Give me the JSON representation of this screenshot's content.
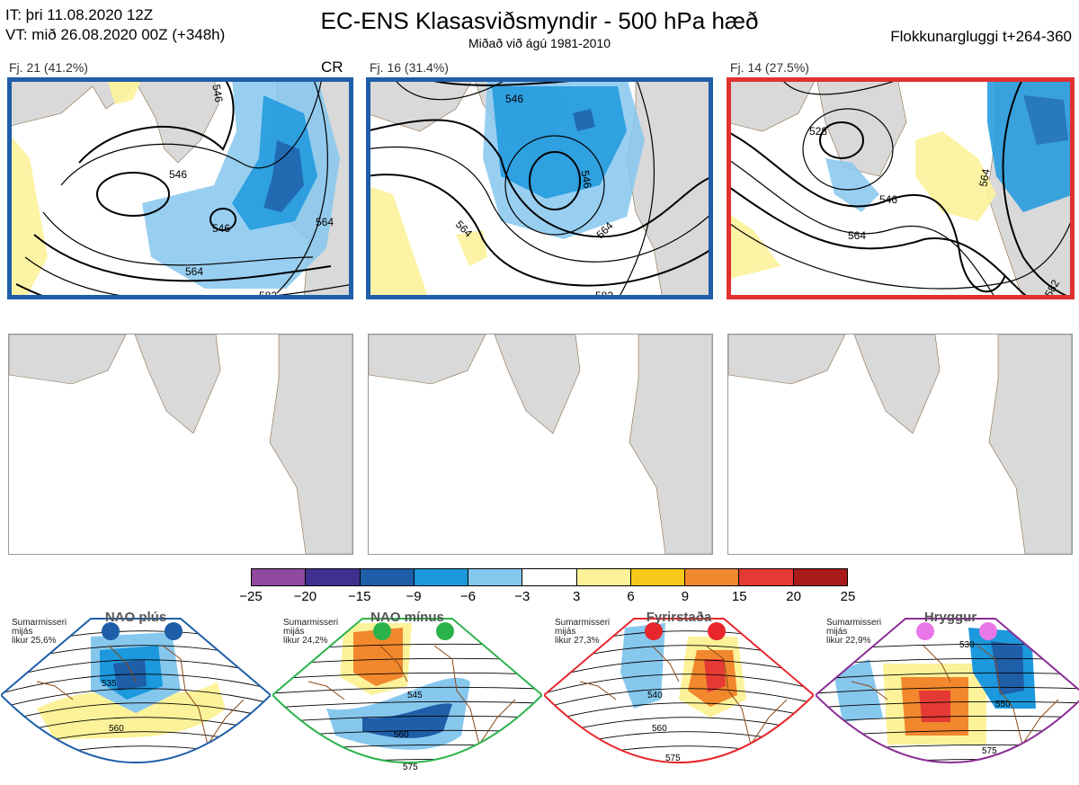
{
  "header": {
    "it": "IT: þri 11.08.2020 12Z",
    "vt": "VT: mið 26.08.2020 00Z  (+348h)",
    "title": "EC-ENS Klasasviðsmyndir - 500 hPa hæð",
    "subtitle": "Miðað við ágú 1981-2010",
    "window": "Flokkunargluggi t+264-360"
  },
  "clusters": [
    {
      "label": "Fj. 21 (41.2%)",
      "extra": "CR",
      "frame_color": "#1f5ea8",
      "contours": [
        "546",
        "546",
        "546",
        "564",
        "564",
        "582"
      ]
    },
    {
      "label": "Fj. 16 (31.4%)",
      "extra": "",
      "frame_color": "#1f5ea8",
      "contours": [
        "546",
        "546",
        "564",
        "564",
        "582"
      ]
    },
    {
      "label": "Fj. 14 (27.5%)",
      "extra": "",
      "frame_color": "#e03030",
      "contours": [
        "528",
        "546",
        "564",
        "564",
        "582"
      ]
    }
  ],
  "legend": {
    "ticks": [
      "−25",
      "−20",
      "−15",
      "−9",
      "−6",
      "−3",
      "3",
      "6",
      "9",
      "15",
      "20",
      "25"
    ],
    "colors": [
      "#8f4aa0",
      "#3f2f8f",
      "#1f5ea8",
      "#1c98dd",
      "#86c7ee",
      "#ffffff",
      "#fcf29a",
      "#f7c81a",
      "#f1882e",
      "#e53a34",
      "#aa1a1a"
    ]
  },
  "regimes": [
    {
      "title": "NAO plús",
      "season": "Sumarmisseri",
      "mean": "mijás",
      "prob": "likur 25,6%",
      "dot_color": "#1f5ea8",
      "border_color": "#1f5ea8",
      "labels": [
        "535",
        "560"
      ]
    },
    {
      "title": "NAO mínus",
      "season": "Sumarmisseri",
      "mean": "mijás",
      "prob": "likur 24,2%",
      "dot_color": "#2bb34b",
      "border_color": "#2bb34b",
      "labels": [
        "545",
        "560",
        "575"
      ]
    },
    {
      "title": "Fyrirstaða",
      "season": "Sumarmisseri",
      "mean": "mijás",
      "prob": "likur 27,3%",
      "dot_color": "#e8262c",
      "border_color": "#e8262c",
      "labels": [
        "540",
        "560",
        "575"
      ]
    },
    {
      "title": "Hryggur",
      "season": "Sumarmisseri",
      "mean": "mijás",
      "prob": "likur 22,9%",
      "dot_color": "#ea77e8",
      "border_color": "#8b2f95",
      "labels": [
        "530",
        "550",
        "575"
      ]
    }
  ]
}
